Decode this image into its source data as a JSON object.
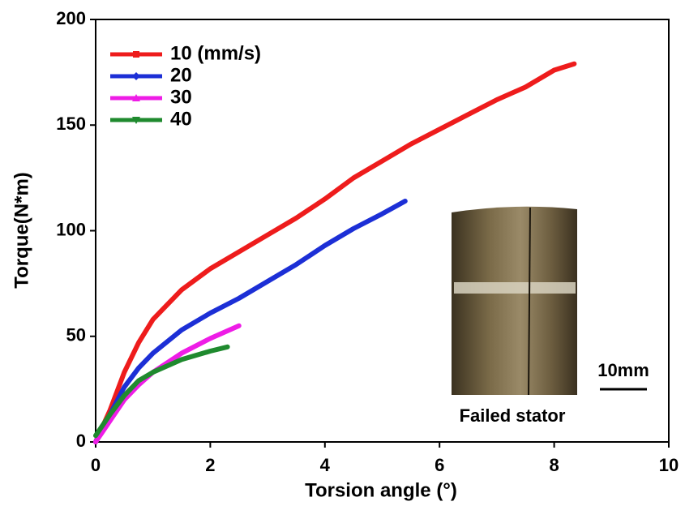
{
  "chart_data": {
    "type": "line",
    "x_label": "Torsion angle (°)",
    "y_label": "Torque(N*m)",
    "xlim": [
      0,
      10
    ],
    "xticks": [
      0,
      2,
      4,
      6,
      8,
      10
    ],
    "ylim": [
      0,
      200
    ],
    "yticks": [
      0,
      50,
      100,
      150,
      200
    ],
    "grid": false,
    "legend": "upper left",
    "series": [
      {
        "name": "10 (mm/s)",
        "color": "#ee1c1c",
        "marker": "square",
        "x": [
          0,
          0.25,
          0.5,
          0.75,
          1,
          1.5,
          2,
          2.5,
          3,
          3.5,
          4,
          4.5,
          5,
          5.5,
          6,
          6.5,
          7,
          7.5,
          8,
          8.35
        ],
        "values": [
          0,
          15,
          33,
          47,
          58,
          72,
          82,
          90,
          98,
          106,
          115,
          125,
          133,
          141,
          148,
          155,
          162,
          168,
          176,
          179
        ]
      },
      {
        "name": "20",
        "color": "#1c2fd6",
        "marker": "diamond",
        "x": [
          0,
          0.25,
          0.5,
          0.75,
          1,
          1.5,
          2,
          2.5,
          3,
          3.5,
          4,
          4.5,
          5,
          5.4
        ],
        "values": [
          0,
          13,
          26,
          35,
          42,
          53,
          61,
          68,
          76,
          84,
          93,
          101,
          108,
          114
        ]
      },
      {
        "name": "30",
        "color": "#ee1ce6",
        "marker": "triangle",
        "x": [
          0,
          0.25,
          0.5,
          0.75,
          1,
          1.5,
          2,
          2.5
        ],
        "values": [
          0,
          10,
          20,
          27,
          33,
          42,
          49,
          55
        ]
      },
      {
        "name": "40",
        "color": "#1f8a2e",
        "marker": "triangle-down",
        "x": [
          0,
          0.25,
          0.5,
          0.75,
          1,
          1.5,
          2,
          2.3
        ],
        "values": [
          3,
          13,
          22,
          29,
          33,
          39,
          43,
          45
        ]
      }
    ],
    "annotations": [
      "10mm",
      "Failed stator"
    ]
  }
}
